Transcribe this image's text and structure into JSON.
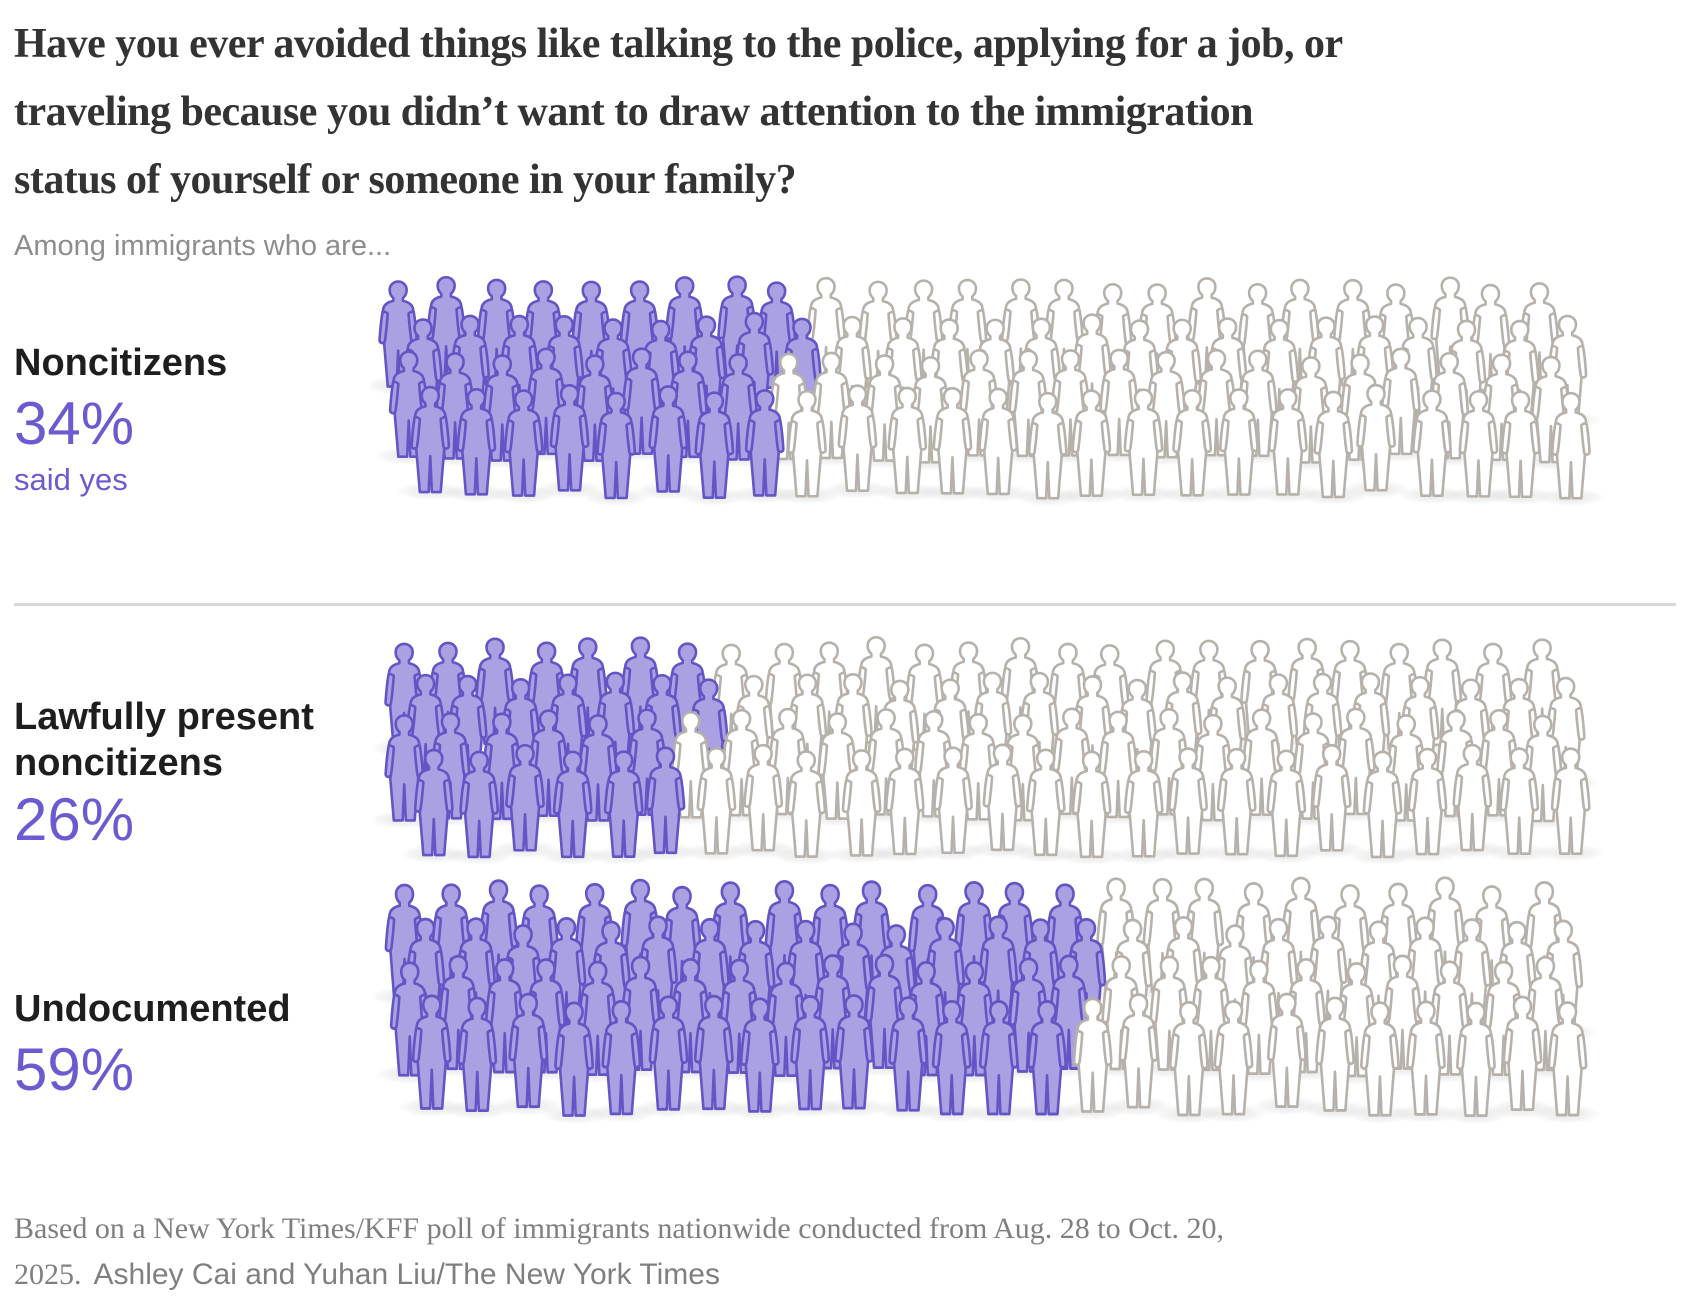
{
  "title_lines": [
    "Have you ever avoided things like talking to the police, applying for a job, or",
    "traveling because you didn’t want to draw attention to the immigration",
    "status of yourself or someone in your family?"
  ],
  "subtitle": "Among immigrants who are...",
  "chart_data": {
    "type": "pictogram",
    "title": "Have you ever avoided things like talking to the police, applying for a job, or traveling because you didn’t want to draw attention to the immigration status of yourself or someone in your family?",
    "subtitle": "Among immigrants who are...",
    "categories": [
      "Noncitizens",
      "Lawfully present noncitizens",
      "Undocumented"
    ],
    "values": [
      34,
      26,
      59
    ],
    "figures_per_group": 100,
    "grid": {
      "columns": 25,
      "depth_rows": 4
    },
    "groups": [
      {
        "label": "Noncitizens",
        "label_lines": [
          "Noncitizens"
        ],
        "percent": 34,
        "percent_label": "34%",
        "note": "said yes"
      },
      {
        "label": "Lawfully present noncitizens",
        "label_lines": [
          "Lawfully present",
          "noncitizens"
        ],
        "percent": 26,
        "percent_label": "26%"
      },
      {
        "label": "Undocumented",
        "label_lines": [
          "Undocumented"
        ],
        "percent": 59,
        "percent_label": "59%"
      }
    ],
    "colors": {
      "yes_fill": "#a9a1e1",
      "yes_stroke": "#6355c5",
      "no_fill": "#ffffff",
      "no_stroke": "#b7b1ab",
      "accent_text": "#6a5bd0",
      "label_text": "#1e1e1e",
      "muted_text": "#8d8d8d"
    },
    "legend": "purple figures = share who said yes, outlined figures = remainder of 100"
  },
  "footer": {
    "note_line1": "Based on a New York Times/KFF poll of immigrants nationwide conducted from Aug. 28 to Oct. 20,",
    "note_line2": "2025.",
    "credit": "Ashley Cai and Yuhan Liu/The New York Times"
  }
}
